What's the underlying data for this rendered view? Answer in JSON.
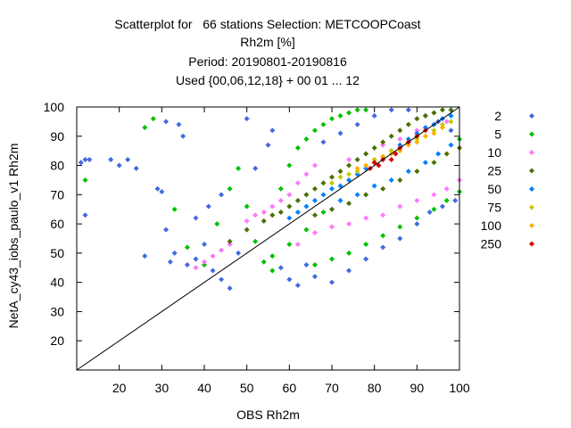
{
  "chart_data": {
    "type": "scatter",
    "title_lines": [
      "Scatterplot for   66 stations Selection: METCOOPCoast",
      "Rh2m [%]",
      "Period: 20190801-20190816",
      "Used {00,06,12,18} + 00 01 ... 12"
    ],
    "xlabel": "OBS Rh2m",
    "ylabel": "NetA_cy43_iobs_paulo_v1 Rh2m",
    "xlim": [
      10,
      100
    ],
    "ylim": [
      10,
      100
    ],
    "xticks": [
      20,
      30,
      40,
      50,
      60,
      70,
      80,
      90,
      100
    ],
    "yticks": [
      20,
      30,
      40,
      50,
      60,
      70,
      80,
      90,
      100
    ],
    "diagonal": {
      "x": [
        10,
        100
      ],
      "y": [
        10,
        100
      ]
    },
    "legend_position": "right",
    "series": [
      {
        "name": "2",
        "color": "#4169e1",
        "points": [
          [
            11,
            81
          ],
          [
            12,
            82
          ],
          [
            12,
            63
          ],
          [
            13,
            82
          ],
          [
            18,
            82
          ],
          [
            20,
            80
          ],
          [
            22,
            82
          ],
          [
            24,
            79
          ],
          [
            26,
            49
          ],
          [
            29,
            72
          ],
          [
            30,
            71
          ],
          [
            31,
            58
          ],
          [
            31,
            95
          ],
          [
            32,
            47
          ],
          [
            33,
            50
          ],
          [
            34,
            94
          ],
          [
            35,
            90
          ],
          [
            36,
            46
          ],
          [
            38,
            48
          ],
          [
            40,
            53
          ],
          [
            42,
            44
          ],
          [
            44,
            41
          ],
          [
            46,
            38
          ],
          [
            48,
            50
          ],
          [
            50,
            96
          ],
          [
            52,
            79
          ],
          [
            55,
            87
          ],
          [
            56,
            92
          ],
          [
            58,
            45
          ],
          [
            60,
            41
          ],
          [
            62,
            39
          ],
          [
            64,
            46
          ],
          [
            66,
            42
          ],
          [
            70,
            40
          ],
          [
            74,
            44
          ],
          [
            78,
            48
          ],
          [
            82,
            52
          ],
          [
            86,
            55
          ],
          [
            90,
            60
          ],
          [
            93,
            64
          ],
          [
            96,
            66
          ],
          [
            99,
            68
          ],
          [
            44,
            70
          ],
          [
            41,
            66
          ],
          [
            38,
            62
          ],
          [
            98,
            92
          ],
          [
            95,
            95
          ],
          [
            92,
            97
          ],
          [
            88,
            99
          ],
          [
            84,
            99
          ],
          [
            80,
            97
          ],
          [
            76,
            94
          ],
          [
            72,
            91
          ],
          [
            68,
            88
          ]
        ]
      },
      {
        "name": "5",
        "color": "#00c000",
        "points": [
          [
            12,
            75
          ],
          [
            26,
            93
          ],
          [
            28,
            96
          ],
          [
            33,
            65
          ],
          [
            36,
            52
          ],
          [
            40,
            46
          ],
          [
            43,
            60
          ],
          [
            46,
            72
          ],
          [
            48,
            79
          ],
          [
            50,
            66
          ],
          [
            52,
            54
          ],
          [
            54,
            47
          ],
          [
            56,
            44
          ],
          [
            58,
            72
          ],
          [
            60,
            80
          ],
          [
            62,
            86
          ],
          [
            64,
            89
          ],
          [
            66,
            92
          ],
          [
            68,
            94
          ],
          [
            70,
            96
          ],
          [
            72,
            97
          ],
          [
            74,
            98
          ],
          [
            76,
            99
          ],
          [
            78,
            99
          ],
          [
            66,
            46
          ],
          [
            70,
            48
          ],
          [
            74,
            50
          ],
          [
            78,
            53
          ],
          [
            82,
            56
          ],
          [
            86,
            59
          ],
          [
            90,
            62
          ],
          [
            94,
            65
          ],
          [
            97,
            68
          ],
          [
            100,
            71
          ],
          [
            60,
            53
          ],
          [
            64,
            58
          ],
          [
            68,
            64
          ],
          [
            56,
            49
          ],
          [
            100,
            89
          ]
        ]
      },
      {
        "name": "10",
        "color": "#ff77ff",
        "points": [
          [
            38,
            45
          ],
          [
            40,
            47
          ],
          [
            42,
            49
          ],
          [
            44,
            51
          ],
          [
            46,
            53
          ],
          [
            50,
            61
          ],
          [
            52,
            63
          ],
          [
            54,
            64
          ],
          [
            56,
            66
          ],
          [
            58,
            68
          ],
          [
            60,
            70
          ],
          [
            62,
            74
          ],
          [
            64,
            77
          ],
          [
            66,
            80
          ],
          [
            62,
            53
          ],
          [
            66,
            57
          ],
          [
            70,
            59
          ],
          [
            74,
            60
          ],
          [
            78,
            62
          ],
          [
            82,
            63
          ],
          [
            86,
            66
          ],
          [
            90,
            68
          ],
          [
            94,
            70
          ],
          [
            97,
            72
          ],
          [
            100,
            75
          ],
          [
            74,
            82
          ],
          [
            78,
            84
          ],
          [
            82,
            87
          ],
          [
            86,
            89
          ],
          [
            90,
            92
          ],
          [
            94,
            94
          ],
          [
            97,
            95
          ]
        ]
      },
      {
        "name": "25",
        "color": "#4a7000",
        "points": [
          [
            46,
            54
          ],
          [
            50,
            58
          ],
          [
            54,
            61
          ],
          [
            56,
            63
          ],
          [
            58,
            64
          ],
          [
            60,
            66
          ],
          [
            62,
            68
          ],
          [
            64,
            70
          ],
          [
            66,
            72
          ],
          [
            68,
            74
          ],
          [
            70,
            76
          ],
          [
            72,
            78
          ],
          [
            74,
            80
          ],
          [
            76,
            82
          ],
          [
            78,
            84
          ],
          [
            80,
            86
          ],
          [
            82,
            88
          ],
          [
            84,
            90
          ],
          [
            86,
            92
          ],
          [
            88,
            94
          ],
          [
            90,
            96
          ],
          [
            92,
            97
          ],
          [
            94,
            98
          ],
          [
            96,
            99
          ],
          [
            98,
            99
          ],
          [
            66,
            63
          ],
          [
            70,
            65
          ],
          [
            74,
            67
          ],
          [
            78,
            70
          ],
          [
            82,
            72
          ],
          [
            86,
            75
          ],
          [
            90,
            78
          ],
          [
            94,
            81
          ],
          [
            97,
            84
          ],
          [
            100,
            86
          ]
        ]
      },
      {
        "name": "50",
        "color": "#0080ff",
        "points": [
          [
            60,
            62
          ],
          [
            62,
            64
          ],
          [
            64,
            66
          ],
          [
            66,
            68
          ],
          [
            68,
            70
          ],
          [
            70,
            72
          ],
          [
            72,
            73
          ],
          [
            74,
            75
          ],
          [
            76,
            77
          ],
          [
            78,
            79
          ],
          [
            80,
            81
          ],
          [
            82,
            83
          ],
          [
            84,
            85
          ],
          [
            86,
            87
          ],
          [
            88,
            89
          ],
          [
            90,
            91
          ],
          [
            92,
            93
          ],
          [
            94,
            94
          ],
          [
            96,
            96
          ],
          [
            98,
            97
          ],
          [
            72,
            68
          ],
          [
            76,
            70
          ],
          [
            80,
            73
          ],
          [
            84,
            75
          ],
          [
            88,
            78
          ],
          [
            92,
            81
          ],
          [
            95,
            84
          ],
          [
            98,
            87
          ]
        ]
      },
      {
        "name": "75",
        "color": "#c8c800",
        "points": [
          [
            70,
            74
          ],
          [
            72,
            76
          ],
          [
            74,
            77
          ],
          [
            76,
            78
          ],
          [
            78,
            80
          ],
          [
            80,
            82
          ],
          [
            82,
            83
          ],
          [
            84,
            85
          ],
          [
            86,
            86
          ],
          [
            88,
            88
          ],
          [
            90,
            89
          ],
          [
            92,
            90
          ],
          [
            94,
            92
          ],
          [
            96,
            94
          ],
          [
            98,
            95
          ]
        ]
      },
      {
        "name": "100",
        "color": "#ffb000",
        "points": [
          [
            76,
            79
          ],
          [
            78,
            80
          ],
          [
            80,
            81
          ],
          [
            82,
            83
          ],
          [
            84,
            84
          ],
          [
            86,
            85
          ],
          [
            88,
            87
          ],
          [
            90,
            88
          ],
          [
            92,
            90
          ],
          [
            94,
            91
          ],
          [
            96,
            93
          ]
        ]
      },
      {
        "name": "250",
        "color": "#e00000",
        "points": [
          [
            79,
            79
          ],
          [
            80,
            81
          ],
          [
            81,
            80
          ],
          [
            82,
            82
          ],
          [
            84,
            82
          ],
          [
            85,
            84
          ],
          [
            86,
            86
          ],
          [
            88,
            88
          ],
          [
            90,
            90
          ],
          [
            92,
            92
          ]
        ]
      }
    ]
  }
}
